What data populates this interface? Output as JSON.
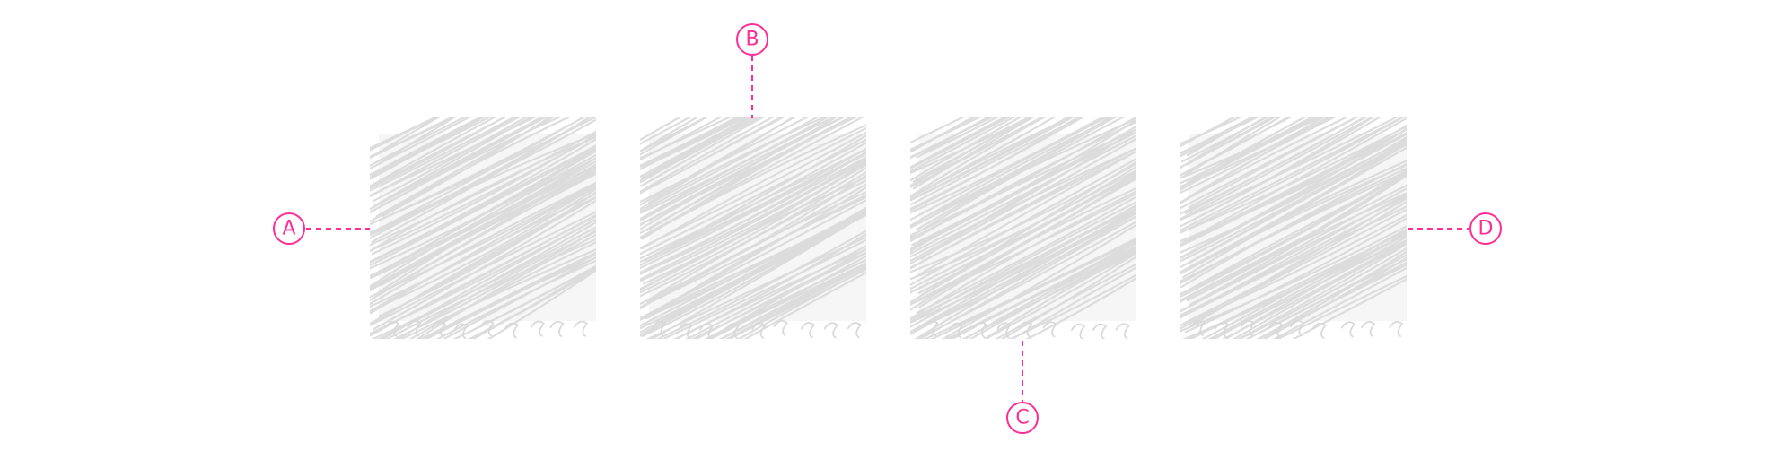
{
  "colors": {
    "background": "#ffffff",
    "scribble_fill": "#e6e6e6",
    "scribble_stroke": "#d9d9d9",
    "callout": "#ff2d95"
  },
  "panels": [
    {
      "id": "panel-1",
      "icon": "scribble-placeholder"
    },
    {
      "id": "panel-2",
      "icon": "scribble-placeholder"
    },
    {
      "id": "panel-3",
      "icon": "scribble-placeholder"
    },
    {
      "id": "panel-4",
      "icon": "scribble-placeholder"
    }
  ],
  "callouts": {
    "a": {
      "label": "A"
    },
    "b": {
      "label": "B"
    },
    "c": {
      "label": "C"
    },
    "d": {
      "label": "D"
    }
  }
}
